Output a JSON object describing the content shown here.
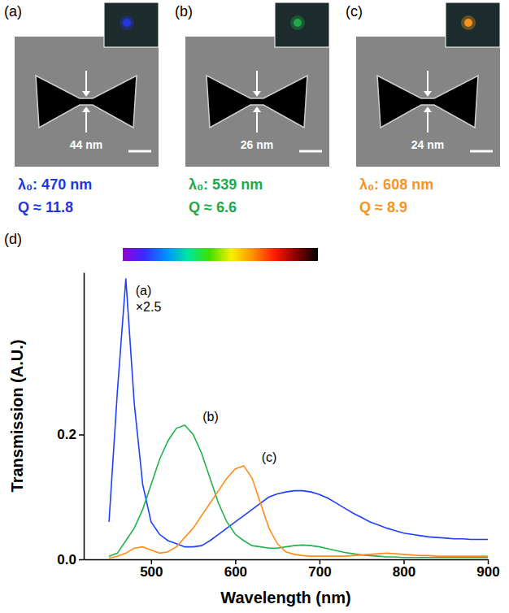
{
  "panels": [
    {
      "label": "(a)",
      "gap": "44 nm",
      "peak": "λ₀: 470 nm",
      "q": "Q ≈ 11.8",
      "color": "#2236e0"
    },
    {
      "label": "(b)",
      "gap": "26 nm",
      "peak": "λ₀: 539 nm",
      "q": "Q ≈ 6.6",
      "color": "#22a848"
    },
    {
      "label": "(c)",
      "gap": "24 nm",
      "peak": "λ₀: 608 nm",
      "q": "Q ≈ 8.9",
      "color": "#f7941d"
    }
  ],
  "chart_data": {
    "type": "line",
    "label": "(d)",
    "x_label": "Wavelength (nm)",
    "y_label": "Transmission (A.U.)",
    "xlim": [
      420,
      900
    ],
    "xticks": [
      500,
      600,
      700,
      800,
      900
    ],
    "ylim": [
      0,
      0.46
    ],
    "yticks": [
      {
        "value": 0,
        "label": "0.0"
      },
      0.2
    ],
    "grid": false,
    "annotations": [
      "×2.5"
    ],
    "x": [
      440,
      450,
      460,
      470,
      480,
      490,
      500,
      510,
      520,
      530,
      540,
      550,
      560,
      570,
      580,
      590,
      600,
      610,
      620,
      630,
      640,
      650,
      660,
      670,
      680,
      690,
      700,
      710,
      720,
      730,
      740,
      750,
      760,
      770,
      780,
      790,
      800,
      810,
      820,
      830,
      840,
      850,
      860,
      870,
      880,
      890,
      900
    ],
    "series": [
      {
        "name": "(a)",
        "color": "#1f3fff",
        "values": [
          null,
          0.06,
          0.27,
          0.45,
          0.25,
          0.12,
          0.06,
          0.04,
          0.03,
          0.025,
          0.02,
          0.02,
          0.022,
          0.03,
          0.04,
          0.05,
          0.06,
          0.07,
          0.08,
          0.09,
          0.1,
          0.105,
          0.108,
          0.11,
          0.11,
          0.108,
          0.104,
          0.098,
          0.09,
          0.082,
          0.074,
          0.067,
          0.06,
          0.055,
          0.05,
          0.046,
          0.042,
          0.04,
          0.038,
          0.036,
          0.035,
          0.034,
          0.033,
          0.033,
          0.032,
          0.032,
          0.032
        ]
      },
      {
        "name": "(b)",
        "color": "#22b14c",
        "values": [
          null,
          0.005,
          0.01,
          0.03,
          0.05,
          0.08,
          0.12,
          0.16,
          0.19,
          0.21,
          0.215,
          0.2,
          0.17,
          0.13,
          0.09,
          0.06,
          0.04,
          0.03,
          0.022,
          0.02,
          0.018,
          0.018,
          0.02,
          0.022,
          0.023,
          0.022,
          0.02,
          0.017,
          0.014,
          0.011,
          0.009,
          0.007,
          0.006,
          0.005,
          0.004,
          0.004,
          0.003,
          0.003,
          0.003,
          0.003,
          0.003,
          0.003,
          0.003,
          0.003,
          0.003,
          0.003,
          0.003
        ]
      },
      {
        "name": "(c)",
        "color": "#ff8c1a",
        "values": [
          null,
          0.002,
          0.005,
          0.01,
          0.018,
          0.02,
          0.015,
          0.01,
          0.012,
          0.02,
          0.035,
          0.05,
          0.07,
          0.09,
          0.11,
          0.13,
          0.145,
          0.15,
          0.13,
          0.09,
          0.05,
          0.025,
          0.012,
          0.008,
          0.006,
          0.005,
          0.005,
          0.005,
          0.005,
          0.005,
          0.006,
          0.007,
          0.008,
          0.009,
          0.01,
          0.009,
          0.008,
          0.007,
          0.006,
          0.006,
          0.005,
          0.005,
          0.005,
          0.005,
          0.005,
          0.005,
          0.005
        ]
      }
    ]
  }
}
